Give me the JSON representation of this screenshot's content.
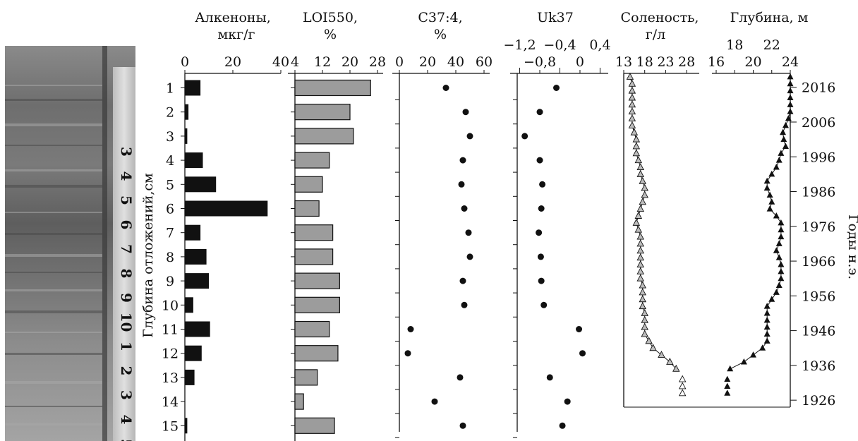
{
  "chart_data": [
    {
      "type": "bar",
      "title": "Алкеноны,",
      "subtitle": "мкг/г",
      "ylabel": "Глубина отложений,см",
      "categories": [
        "1",
        "2",
        "3",
        "4",
        "5",
        "6",
        "7",
        "8",
        "9",
        "10",
        "11",
        "12",
        "13",
        "14",
        "15"
      ],
      "xticks": [
        "0",
        "20",
        "40"
      ],
      "xlim": [
        0,
        40
      ],
      "values": [
        6.5,
        1.5,
        1,
        7.5,
        13,
        34.5,
        6.5,
        9,
        10,
        3.5,
        10.5,
        7,
        4,
        0,
        1
      ],
      "color": "#111111"
    },
    {
      "type": "bar",
      "title": "LOI550,",
      "subtitle": "%",
      "xticks": [
        "4",
        "12",
        "20",
        "28"
      ],
      "xlim": [
        4,
        30
      ],
      "values": [
        26,
        20,
        21,
        14,
        12,
        11,
        15,
        15,
        17,
        17,
        14,
        16.5,
        10.5,
        6.5,
        15.5
      ],
      "color": "#9c9c9c"
    },
    {
      "type": "scatter",
      "title": "C37:4,",
      "subtitle": "%",
      "xticks": [
        "0",
        "20",
        "40",
        "60"
      ],
      "xlim": [
        0,
        60
      ],
      "values": [
        33,
        47,
        50,
        45,
        44,
        46,
        49,
        50,
        45,
        46,
        8,
        6,
        43,
        25,
        45
      ]
    },
    {
      "type": "scatter",
      "title": "Uk37",
      "xticks": [
        "−1,2",
        "−0,4",
        "0,4"
      ],
      "xticks_lower": [
        "−0,8",
        "0"
      ],
      "xlim": [
        -1.25,
        0.45
      ],
      "values": [
        -0.47,
        -0.8,
        -1.1,
        -0.8,
        -0.75,
        -0.77,
        -0.82,
        -0.78,
        -0.77,
        -0.72,
        -0.02,
        0.05,
        -0.6,
        -0.25,
        -0.35
      ]
    },
    {
      "type": "line",
      "title": "Соленость,",
      "subtitle": "г/л",
      "xticks": [
        "13",
        "18",
        "23",
        "28"
      ],
      "xlim": [
        13,
        30
      ],
      "ylim": [
        2020,
        1924
      ],
      "x": [
        2019,
        2017,
        2015,
        2013,
        2011,
        2009,
        2007,
        2005,
        2003,
        2001,
        1999,
        1997,
        1995,
        1993,
        1991,
        1989,
        1987,
        1985,
        1983,
        1981,
        1979,
        1977,
        1975,
        1973,
        1971,
        1969,
        1967,
        1965,
        1963,
        1961,
        1959,
        1957,
        1955,
        1953,
        1951,
        1949,
        1947,
        1945,
        1943,
        1941,
        1939,
        1937,
        1935
      ],
      "values": [
        14.5,
        15,
        15,
        15,
        15,
        15,
        15,
        15,
        15.5,
        16,
        16,
        16,
        16.5,
        17,
        17,
        17.5,
        18,
        18,
        17.5,
        17,
        16.5,
        16,
        16.5,
        17,
        17,
        17,
        17,
        17,
        17,
        17,
        17.5,
        17.5,
        17.5,
        17.5,
        18,
        18,
        18,
        18,
        19,
        20,
        22,
        24,
        25.5
      ],
      "extra_points": [
        {
          "x": 1932,
          "value": 27
        },
        {
          "x": 1930,
          "value": 27
        },
        {
          "x": 1928,
          "value": 27
        }
      ]
    },
    {
      "type": "line",
      "title": "Глубина, м",
      "xticks": [
        "16",
        "20",
        "24"
      ],
      "xticks_upper": [
        "18",
        "22"
      ],
      "xlim": [
        16,
        24
      ],
      "ylim": [
        2020,
        1924
      ],
      "x": [
        2019,
        2017,
        2015,
        2013,
        2011,
        2009,
        2007,
        2005,
        2003,
        2001,
        1999,
        1997,
        1995,
        1993,
        1991,
        1989,
        1987,
        1985,
        1983,
        1981,
        1979,
        1977,
        1975,
        1973,
        1971,
        1969,
        1967,
        1965,
        1963,
        1961,
        1959,
        1957,
        1955,
        1953,
        1951,
        1949,
        1947,
        1945,
        1943,
        1941,
        1939,
        1937,
        1935
      ],
      "values": [
        24,
        24,
        24,
        24,
        24,
        24,
        23.8,
        23.5,
        23.2,
        23.3,
        23.5,
        23,
        22.8,
        22.5,
        22,
        21.5,
        21.5,
        21.8,
        22,
        21.8,
        22.5,
        23,
        23,
        23,
        22.8,
        22.5,
        22.8,
        23,
        23,
        23,
        22.8,
        22.5,
        22,
        21.5,
        21.5,
        21.5,
        21.5,
        21.5,
        21.5,
        21,
        20,
        19,
        17.5
      ],
      "extra_points": [
        {
          "x": 1932,
          "value": 17.2
        },
        {
          "x": 1930,
          "value": 17.2
        },
        {
          "x": 1928,
          "value": 17.2
        }
      ],
      "right_axis": {
        "label": "Годы н.э.",
        "ticks": [
          "2016",
          "2006",
          "1996",
          "1986",
          "1976",
          "1966",
          "1956",
          "1946",
          "1936",
          "1926"
        ]
      }
    }
  ],
  "photo": {
    "tape_numbers": [
      "3",
      "4",
      "5",
      "6",
      "7",
      "8",
      "9",
      "10",
      "1",
      "2",
      "3",
      "4",
      "5"
    ]
  }
}
